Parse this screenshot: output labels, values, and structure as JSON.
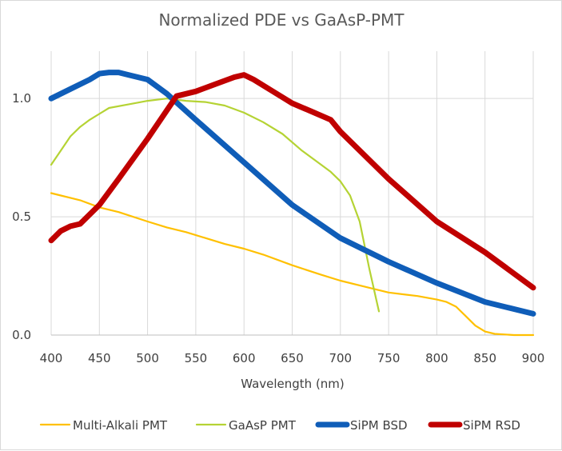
{
  "chart_data": {
    "type": "line",
    "title": "Normalized PDE vs GaAsP-PMT",
    "xlabel": "Wavelength (nm)",
    "ylabel": "",
    "xlim": [
      400,
      900
    ],
    "ylim": [
      0,
      1.2
    ],
    "x_ticks": [
      400,
      450,
      500,
      550,
      600,
      650,
      700,
      750,
      800,
      850,
      900
    ],
    "y_ticks": [
      0,
      0.5,
      1.0
    ],
    "y_tick_labels": [
      "0.0",
      "0.5",
      "1.0"
    ],
    "vertical_grid": true,
    "horizontal_grid": true,
    "legend_position": "bottom",
    "series": [
      {
        "name": "Multi-Alkali PMT",
        "color": "#FFC000",
        "width": "thin",
        "x": [
          400,
          410,
          420,
          430,
          450,
          470,
          500,
          520,
          540,
          560,
          580,
          600,
          620,
          650,
          680,
          700,
          720,
          750,
          780,
          800,
          810,
          820,
          830,
          840,
          850,
          860,
          880,
          900
        ],
        "y": [
          0.6,
          0.59,
          0.58,
          0.57,
          0.54,
          0.52,
          0.48,
          0.455,
          0.435,
          0.41,
          0.385,
          0.365,
          0.34,
          0.295,
          0.255,
          0.23,
          0.21,
          0.18,
          0.165,
          0.15,
          0.14,
          0.12,
          0.08,
          0.04,
          0.015,
          0.005,
          0.0,
          0.0
        ]
      },
      {
        "name": "GaAsP PMT",
        "color": "#B5D334",
        "width": "thin",
        "x": [
          400,
          410,
          420,
          430,
          440,
          460,
          480,
          500,
          520,
          540,
          560,
          580,
          600,
          620,
          640,
          660,
          680,
          690,
          700,
          710,
          720,
          730,
          740
        ],
        "y": [
          0.72,
          0.78,
          0.84,
          0.88,
          0.91,
          0.96,
          0.975,
          0.99,
          1.0,
          0.99,
          0.985,
          0.97,
          0.94,
          0.9,
          0.85,
          0.78,
          0.72,
          0.69,
          0.65,
          0.59,
          0.48,
          0.28,
          0.1
        ]
      },
      {
        "name": "SiPM BSD",
        "color": "#0F5DB8",
        "width": "thick",
        "x": [
          400,
          420,
          440,
          450,
          460,
          470,
          480,
          500,
          520,
          550,
          600,
          650,
          700,
          750,
          800,
          850,
          900
        ],
        "y": [
          1.0,
          1.04,
          1.08,
          1.105,
          1.11,
          1.11,
          1.1,
          1.08,
          1.02,
          0.91,
          0.73,
          0.55,
          0.41,
          0.31,
          0.22,
          0.14,
          0.09
        ]
      },
      {
        "name": "SiPM RSD",
        "color": "#C00000",
        "width": "thick",
        "x": [
          400,
          410,
          420,
          430,
          450,
          470,
          500,
          530,
          550,
          570,
          590,
          600,
          610,
          630,
          650,
          670,
          690,
          700,
          750,
          800,
          850,
          900
        ],
        "y": [
          0.4,
          0.44,
          0.46,
          0.47,
          0.55,
          0.66,
          0.83,
          1.01,
          1.03,
          1.06,
          1.09,
          1.1,
          1.08,
          1.03,
          0.98,
          0.945,
          0.91,
          0.86,
          0.66,
          0.48,
          0.35,
          0.2
        ]
      }
    ]
  }
}
